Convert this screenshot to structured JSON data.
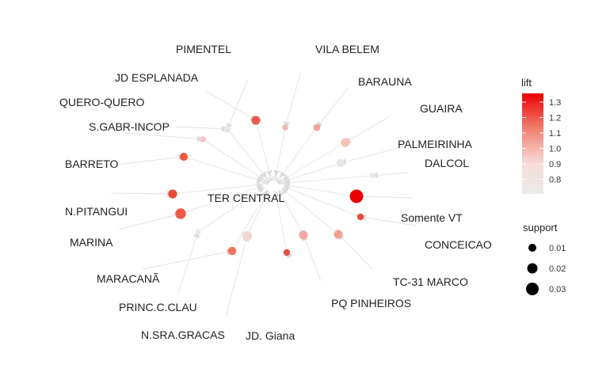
{
  "graph": {
    "center": {
      "label": "TER CENTRAL"
    },
    "rules": [
      {
        "source": "PIMENTEL",
        "lift": 1.0,
        "support": 0.005,
        "color": "#f3cccc"
      },
      {
        "source": "VILA BELEM",
        "lift": 1.05,
        "support": 0.003,
        "color": "#f0b8b8"
      },
      {
        "source": "JD ESPLANADA",
        "lift": 1.25,
        "support": 0.011,
        "color": "#ea5d4c"
      },
      {
        "source": "BARAUNA",
        "lift": 1.1,
        "support": 0.005,
        "color": "#f3a79b"
      },
      {
        "source": "QUERO-QUERO",
        "lift": 0.85,
        "support": 0.005,
        "color": "#ebe5e5"
      },
      {
        "source": "GUAIRA",
        "lift": 1.0,
        "support": 0.011,
        "color": "#f5c3b7"
      },
      {
        "source": "S.GABR-INCOP",
        "lift": 1.0,
        "support": 0.003,
        "color": "#f3c6c6"
      },
      {
        "source": "PALMEIRINHA",
        "lift": 0.75,
        "support": 0.008,
        "color": "#e6e6e6"
      },
      {
        "source": "BARRETO",
        "lift": 1.25,
        "support": 0.008,
        "color": "#ee5a40"
      },
      {
        "source": "DALCOL",
        "lift": 0.75,
        "support": 0.002,
        "color": "#ebebeb"
      },
      {
        "source": "N.PITANGUI",
        "lift": 1.25,
        "support": 0.011,
        "color": "#ea4c38"
      },
      {
        "source": "Somente VT",
        "lift": 1.35,
        "support": 0.035,
        "color": "#ea0000"
      },
      {
        "source": "MARINA",
        "lift": 1.25,
        "support": 0.018,
        "color": "#ee5a48"
      },
      {
        "source": "CONCEICAO",
        "lift": 1.2,
        "support": 0.004,
        "color": "#ea4a3a"
      },
      {
        "source": "MARACANÃ",
        "lift": 1.1,
        "support": 0.009,
        "color": "#ed7560"
      },
      {
        "source": "TC-31 MARCO",
        "lift": 1.1,
        "support": 0.01,
        "color": "#f3a090"
      },
      {
        "source": "PRINC.C.CLAU",
        "lift": 0.85,
        "support": 0.002,
        "color": "#efe7e7"
      },
      {
        "source": "PQ PINHEIROS",
        "lift": 1.05,
        "support": 0.011,
        "color": "#f2aaa0"
      },
      {
        "source": "N.SRA.GRACAS",
        "lift": 0.9,
        "support": 0.014,
        "color": "#f2d8d4"
      },
      {
        "source": "JD. Giana",
        "lift": 1.2,
        "support": 0.004,
        "color": "#e95040"
      }
    ]
  },
  "legend": {
    "lift": {
      "title": "lift",
      "ticks": [
        "1.3",
        "1.2",
        "1.1",
        "1.0",
        "0.9",
        "0.8"
      ],
      "gradient": [
        "#ea0000",
        "#f08070",
        "#f7dcd8",
        "#ebebeb"
      ]
    },
    "support": {
      "title": "support",
      "ticks": [
        "0.01",
        "0.02",
        "0.03"
      ]
    }
  }
}
